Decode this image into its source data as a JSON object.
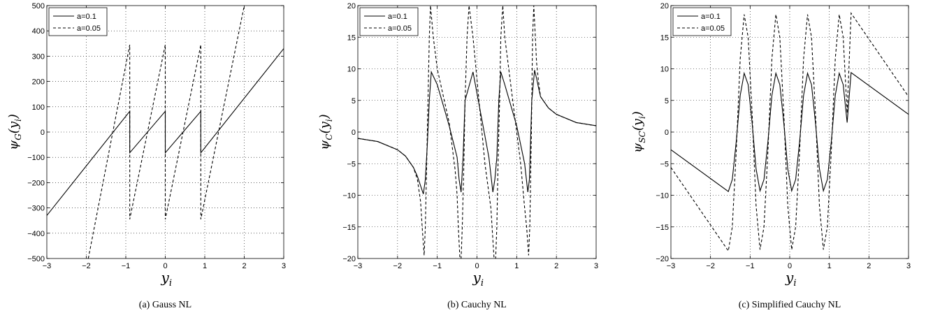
{
  "chart_data": [
    {
      "type": "line",
      "panel": "gauss",
      "caption": "(a) Gauss NL",
      "xlabel": "y",
      "xlabel_sub": "i",
      "ylabel": "ψ",
      "ylabel_sub": "G",
      "ylabel_arg": "(y",
      "ylabel_arg_sub": "i",
      "ylabel_close": ")",
      "xlim": [
        -3,
        3
      ],
      "ylim": [
        -500,
        500
      ],
      "xticks": [
        -3,
        -2,
        -1,
        0,
        1,
        2,
        3
      ],
      "xtick_labels": [
        "−3",
        "−2",
        "−1",
        "0",
        "1",
        "2",
        "3"
      ],
      "yticks": [
        -500,
        -400,
        -300,
        -200,
        -100,
        0,
        100,
        200,
        300,
        400,
        500
      ],
      "ytick_labels": [
        "−500",
        "−400",
        "−300",
        "−200",
        "−100",
        "0",
        "100",
        "200",
        "300",
        "400",
        "500"
      ],
      "grid": true,
      "legend_position": "top-left",
      "series": [
        {
          "name": "a=0.1",
          "style": "solid",
          "x": [
            -3,
            -0.9,
            -0.9,
            0,
            0,
            0.9,
            0.9,
            3
          ],
          "y": [
            -330,
            82,
            -82,
            82,
            -82,
            82,
            -82,
            330
          ]
        },
        {
          "name": "a=0.05",
          "style": "dashed",
          "x": [
            -1.95,
            -0.9,
            -0.9,
            0,
            0,
            0.9,
            0.9,
            2.0
          ],
          "y": [
            -500,
            345,
            -345,
            345,
            -345,
            345,
            -345,
            500
          ]
        }
      ]
    },
    {
      "type": "line",
      "panel": "cauchy",
      "caption": "(b) Cauchy NL",
      "xlabel": "y",
      "xlabel_sub": "i",
      "ylabel": "ψ",
      "ylabel_sub": "C",
      "ylabel_arg": "(y",
      "ylabel_arg_sub": "i",
      "ylabel_close": ")",
      "xlim": [
        -3,
        3
      ],
      "ylim": [
        -20,
        20
      ],
      "xticks": [
        -3,
        -2,
        -1,
        0,
        1,
        2,
        3
      ],
      "xtick_labels": [
        "−3",
        "−2",
        "−1",
        "0",
        "1",
        "2",
        "3"
      ],
      "yticks": [
        -20,
        -15,
        -10,
        -5,
        0,
        5,
        10,
        15,
        20
      ],
      "ytick_labels": [
        "−20",
        "−15",
        "−10",
        "−5",
        "0",
        "5",
        "10",
        "15",
        "20"
      ],
      "grid": true,
      "legend_position": "top-left",
      "series": [
        {
          "name": "a=0.1",
          "style": "solid",
          "x": [
            -3,
            -2.5,
            -2,
            -1.8,
            -1.6,
            -1.5,
            -1.42,
            -1.35,
            -1.3,
            -1.25,
            -1.2,
            -1.15,
            -1.0,
            -0.7,
            -0.5,
            -0.45,
            -0.4,
            -0.35,
            -0.3,
            -0.1,
            0.3,
            0.4,
            0.45,
            0.5,
            0.55,
            0.6,
            0.7,
            1.0,
            1.2,
            1.28,
            1.32,
            1.38,
            1.45,
            1.5,
            1.55,
            1.6,
            1.8,
            2.0,
            2.5,
            3
          ],
          "y": [
            -1.0,
            -1.5,
            -2.8,
            -3.8,
            -5.6,
            -7.0,
            -8.5,
            -9.8,
            -7.5,
            -2,
            5,
            9.5,
            7.5,
            1.0,
            -4,
            -7.5,
            -9.5,
            -4,
            5,
            9.5,
            -4,
            -9.5,
            -7.5,
            -4,
            5,
            9.5,
            7.5,
            1,
            -5,
            -9.5,
            -7.5,
            5,
            9.8,
            8.5,
            7.0,
            5.6,
            3.8,
            2.8,
            1.5,
            1.0
          ]
        },
        {
          "name": "a=0.05",
          "style": "dashed",
          "x": [
            -3,
            -2.5,
            -2,
            -1.8,
            -1.6,
            -1.5,
            -1.42,
            -1.38,
            -1.33,
            -1.3,
            -1.25,
            -1.2,
            -1.17,
            -1.1,
            -1.0,
            -0.7,
            -0.55,
            -0.5,
            -0.47,
            -0.43,
            -0.4,
            -0.37,
            -0.33,
            -0.3,
            -0.25,
            -0.2,
            -0.1,
            0.2,
            0.35,
            0.4,
            0.43,
            0.47,
            0.5,
            0.53,
            0.57,
            0.6,
            0.65,
            0.7,
            0.8,
            1.1,
            1.2,
            1.25,
            1.3,
            1.33,
            1.37,
            1.4,
            1.43,
            1.47,
            1.5,
            1.55,
            1.6,
            1.8,
            2.0,
            2.5,
            3
          ],
          "y": [
            -1.0,
            -1.5,
            -2.8,
            -3.8,
            -5.6,
            -7.5,
            -11,
            -15,
            -19.5,
            -15,
            0,
            15,
            20,
            15,
            10,
            1.5,
            -6,
            -10,
            -15,
            -20,
            -20,
            -15,
            -5,
            5,
            15,
            20,
            15,
            -5,
            -12,
            -17,
            -20,
            -20,
            -15,
            -5,
            5,
            15,
            20,
            15,
            10,
            -5,
            -12,
            -15,
            -19.5,
            -15,
            0,
            15,
            20,
            15,
            11,
            8,
            5.6,
            3.8,
            2.8,
            1.5,
            1.0
          ]
        }
      ]
    },
    {
      "type": "line",
      "panel": "simplified-cauchy",
      "caption": "(c) Simplified Cauchy NL",
      "xlabel": "y",
      "xlabel_sub": "i",
      "ylabel": "ψ",
      "ylabel_sub": "SC",
      "ylabel_arg": "(y",
      "ylabel_arg_sub": "i",
      "ylabel_close": ")",
      "xlim": [
        -3,
        3
      ],
      "ylim": [
        -20,
        20
      ],
      "xticks": [
        -3,
        -2,
        -1,
        0,
        1,
        2,
        3
      ],
      "xtick_labels": [
        "−3",
        "−2",
        "−1",
        "0",
        "1",
        "2",
        "3"
      ],
      "yticks": [
        -20,
        -15,
        -10,
        -5,
        0,
        5,
        10,
        15,
        20
      ],
      "ytick_labels": [
        "−20",
        "−15",
        "−10",
        "−5",
        "0",
        "5",
        "10",
        "15",
        "20"
      ],
      "grid": true,
      "legend_position": "top-left",
      "series": [
        {
          "name": "a=0.1",
          "style": "solid",
          "x": [
            -3,
            -1.55,
            -1.45,
            -1.35,
            -1.25,
            -1.15,
            -1.05,
            -0.95,
            -0.85,
            -0.75,
            -0.65,
            -0.55,
            -0.45,
            -0.35,
            -0.25,
            -0.15,
            -0.05,
            0.05,
            0.15,
            0.25,
            0.35,
            0.45,
            0.55,
            0.65,
            0.75,
            0.85,
            0.95,
            1.05,
            1.15,
            1.25,
            1.35,
            1.45,
            1.55,
            3
          ],
          "y": [
            -2.8,
            -9.4,
            -7.5,
            -1.5,
            5.8,
            9.3,
            7.5,
            1.5,
            -5.8,
            -9.3,
            -7.5,
            -1.5,
            5.8,
            9.3,
            7.5,
            1.5,
            -5.8,
            -9.3,
            -7.5,
            -1.5,
            5.8,
            9.3,
            7.5,
            1.5,
            -5.8,
            -9.3,
            -7.5,
            -1.5,
            5.8,
            9.3,
            7.5,
            1.5,
            9.4,
            2.8
          ]
        },
        {
          "name": "a=0.05",
          "style": "dashed",
          "x": [
            -3,
            -1.55,
            -1.45,
            -1.35,
            -1.25,
            -1.15,
            -1.05,
            -0.95,
            -0.85,
            -0.75,
            -0.65,
            -0.55,
            -0.45,
            -0.35,
            -0.25,
            -0.15,
            -0.05,
            0.05,
            0.15,
            0.25,
            0.35,
            0.45,
            0.55,
            0.65,
            0.75,
            0.85,
            0.95,
            1.05,
            1.15,
            1.25,
            1.35,
            1.45,
            1.55,
            3
          ],
          "y": [
            -5.6,
            -18.8,
            -15,
            -3,
            11.6,
            18.6,
            15,
            3,
            -11.6,
            -18.6,
            -15,
            -3,
            11.6,
            18.6,
            15,
            3,
            -11.6,
            -18.6,
            -15,
            -3,
            11.6,
            18.6,
            15,
            3,
            -11.6,
            -18.6,
            -15,
            -3,
            11.6,
            18.6,
            15,
            3,
            18.8,
            5.6
          ]
        }
      ]
    }
  ]
}
